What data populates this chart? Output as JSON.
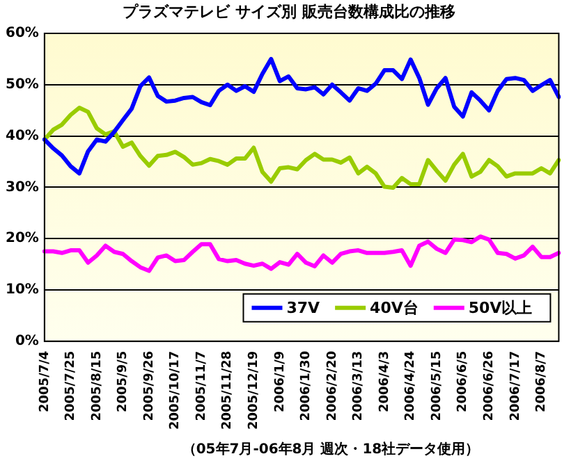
{
  "chart_data": {
    "type": "line",
    "title": "プラズマテレビ サイズ別 販売台数構成比の推移",
    "categories": [
      "2005/7/4",
      null,
      null,
      "2005/7/25",
      null,
      null,
      "2005/8/15",
      null,
      null,
      "2005/9/5",
      null,
      null,
      "2005/9/26",
      null,
      null,
      "2005/10/17",
      null,
      null,
      "2005/11/7",
      null,
      null,
      "2005/11/28",
      null,
      null,
      "2005/12/19",
      null,
      null,
      "2006/1/9",
      null,
      null,
      "2006/1/30",
      null,
      null,
      "2006/2/20",
      null,
      null,
      "2006/3/13",
      null,
      null,
      "2006/4/3",
      null,
      null,
      "2006/4/24",
      null,
      null,
      "2006/5/15",
      null,
      null,
      "2006/6/5",
      null,
      null,
      "2006/6/26",
      null,
      null,
      "2006/7/17",
      null,
      null,
      "2006/8/7",
      null,
      null
    ],
    "series": [
      {
        "name": "37V",
        "color": "#0000ff",
        "values": [
          39.3,
          37.6,
          36.2,
          34.1,
          32.7,
          37.0,
          39.3,
          38.9,
          40.8,
          43.1,
          45.3,
          49.7,
          51.4,
          47.8,
          46.7,
          46.9,
          47.4,
          47.6,
          46.6,
          46.0,
          48.8,
          50.0,
          48.8,
          49.7,
          48.6,
          52.1,
          55.0,
          50.7,
          51.6,
          49.3,
          49.1,
          49.5,
          48.1,
          50.0,
          48.5,
          46.9,
          49.3,
          48.8,
          50.2,
          52.8,
          52.8,
          51.1,
          54.9,
          51.3,
          46.1,
          49.3,
          51.3,
          45.7,
          43.8,
          48.5,
          46.9,
          45.0,
          48.8,
          51.1,
          51.3,
          50.9,
          48.8,
          49.9,
          50.9,
          47.6
        ]
      },
      {
        "name": "40V台",
        "color": "#99cc00",
        "values": [
          39.3,
          41.2,
          42.2,
          44.1,
          45.5,
          44.7,
          41.5,
          40.3,
          40.9,
          37.9,
          38.7,
          36.1,
          34.2,
          36.1,
          36.3,
          36.9,
          35.9,
          34.4,
          34.7,
          35.5,
          35.1,
          34.4,
          35.6,
          35.6,
          37.7,
          33.0,
          31.1,
          33.7,
          33.9,
          33.5,
          35.3,
          36.5,
          35.4,
          35.4,
          34.8,
          35.8,
          32.7,
          34.0,
          32.7,
          30.1,
          29.9,
          31.8,
          30.6,
          30.6,
          35.3,
          33.2,
          31.3,
          34.4,
          36.5,
          32.1,
          33.0,
          35.3,
          34.1,
          32.1,
          32.7,
          32.7,
          32.7,
          33.7,
          32.7,
          35.3
        ]
      },
      {
        "name": "50V以上",
        "color": "#ff00ff",
        "values": [
          17.5,
          17.5,
          17.2,
          17.7,
          17.7,
          15.3,
          16.7,
          18.6,
          17.4,
          17.0,
          15.6,
          14.4,
          13.7,
          16.3,
          16.7,
          15.6,
          15.8,
          17.4,
          18.9,
          18.9,
          16.0,
          15.6,
          15.8,
          15.1,
          14.7,
          15.1,
          14.1,
          15.4,
          14.9,
          17.0,
          15.3,
          14.6,
          16.7,
          15.3,
          17.0,
          17.5,
          17.7,
          17.2,
          17.2,
          17.2,
          17.4,
          17.7,
          14.7,
          18.6,
          19.4,
          18.0,
          17.2,
          19.8,
          19.7,
          19.3,
          20.4,
          19.8,
          17.2,
          17.0,
          16.1,
          16.7,
          18.4,
          16.4,
          16.4,
          17.2
        ]
      }
    ],
    "ylim": [
      0,
      60
    ],
    "yticks": [
      {
        "value": 0,
        "label": "0%"
      },
      {
        "value": 10,
        "label": "10%"
      },
      {
        "value": 20,
        "label": "20%"
      },
      {
        "value": 30,
        "label": "30%"
      },
      {
        "value": 40,
        "label": "40%"
      },
      {
        "value": 50,
        "label": "50%"
      },
      {
        "value": 60,
        "label": "60%"
      }
    ],
    "grid": "y",
    "legend": "bottom right",
    "marker": "none",
    "line_style": "solid",
    "annotations": [
      "（05年7月-06年8月 週次・18社データ使用）"
    ]
  }
}
